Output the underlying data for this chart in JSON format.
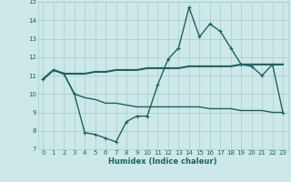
{
  "xlabel": "Humidex (Indice chaleur)",
  "xlim": [
    -0.5,
    23.5
  ],
  "ylim": [
    7,
    15
  ],
  "yticks": [
    7,
    8,
    9,
    10,
    11,
    12,
    13,
    14,
    15
  ],
  "xticks": [
    0,
    1,
    2,
    3,
    4,
    5,
    6,
    7,
    8,
    9,
    10,
    11,
    12,
    13,
    14,
    15,
    16,
    17,
    18,
    19,
    20,
    21,
    22,
    23
  ],
  "background_color": "#cce8e8",
  "grid_color": "#aacccc",
  "line_color": "#206060",
  "line1_x": [
    0,
    1,
    2,
    3,
    4,
    5,
    6,
    7,
    8,
    9,
    10,
    11,
    12,
    13,
    14,
    15,
    16,
    17,
    18,
    19,
    20,
    21,
    22,
    23
  ],
  "line1_y": [
    10.8,
    11.3,
    11.1,
    10.0,
    7.9,
    7.8,
    7.6,
    7.4,
    8.5,
    8.8,
    8.8,
    10.5,
    11.9,
    12.5,
    14.7,
    13.1,
    13.8,
    13.4,
    12.5,
    11.6,
    11.5,
    11.0,
    11.6,
    9.0
  ],
  "line2_x": [
    0,
    1,
    2,
    3,
    4,
    5,
    6,
    7,
    8,
    9,
    10,
    11,
    12,
    13,
    14,
    15,
    16,
    17,
    18,
    19,
    20,
    21,
    22,
    23
  ],
  "line2_y": [
    10.8,
    11.3,
    11.1,
    11.1,
    11.1,
    11.2,
    11.2,
    11.3,
    11.3,
    11.3,
    11.4,
    11.4,
    11.4,
    11.4,
    11.5,
    11.5,
    11.5,
    11.5,
    11.5,
    11.6,
    11.6,
    11.6,
    11.6,
    11.6
  ],
  "line3_x": [
    0,
    1,
    2,
    3,
    4,
    5,
    6,
    7,
    8,
    9,
    10,
    11,
    12,
    13,
    14,
    15,
    16,
    17,
    18,
    19,
    20,
    21,
    22,
    23
  ],
  "line3_y": [
    10.8,
    11.3,
    11.1,
    10.0,
    9.8,
    9.7,
    9.5,
    9.5,
    9.4,
    9.3,
    9.3,
    9.3,
    9.3,
    9.3,
    9.3,
    9.3,
    9.2,
    9.2,
    9.2,
    9.1,
    9.1,
    9.1,
    9.0,
    9.0
  ],
  "tick_fontsize": 5,
  "xlabel_fontsize": 6,
  "marker_size": 3,
  "linewidth1": 1.0,
  "linewidth2": 1.5,
  "linewidth3": 1.0
}
